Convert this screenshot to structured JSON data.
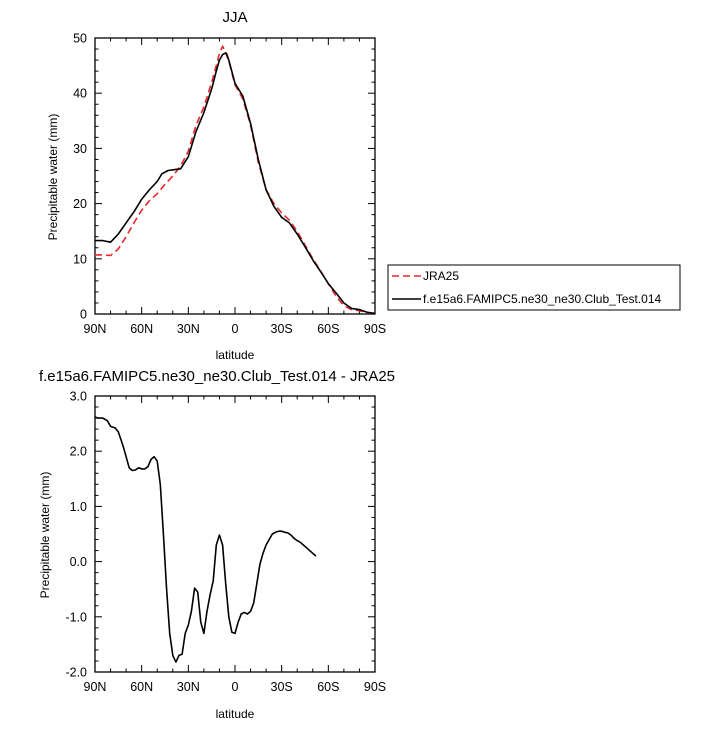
{
  "chart_data": [
    {
      "type": "line",
      "title": "JJA",
      "xlabel": "latitude",
      "ylabel": "Precipitable water (mm)",
      "xlim": [
        90,
        -90
      ],
      "ylim": [
        0,
        50
      ],
      "xticks": [
        90,
        60,
        30,
        0,
        -30,
        -60,
        -90
      ],
      "xtick_labels": [
        "90N",
        "60N",
        "30N",
        "0",
        "30S",
        "60S",
        "90S"
      ],
      "yticks": [
        0,
        10,
        20,
        30,
        40,
        50
      ],
      "ytick_labels": [
        "0",
        "10",
        "20",
        "30",
        "40",
        "50"
      ],
      "grid": false,
      "legend_position": "right",
      "series": [
        {
          "name": "JRA25",
          "color": "#e8262b",
          "dash": "dashed",
          "points": [
            [
              90,
              10.7
            ],
            [
              85,
              10.7
            ],
            [
              80,
              10.6
            ],
            [
              75,
              11.8
            ],
            [
              70,
              14
            ],
            [
              65,
              16.5
            ],
            [
              60,
              18.8
            ],
            [
              55,
              20.5
            ],
            [
              50,
              21.8
            ],
            [
              45,
              23.5
            ],
            [
              40,
              25
            ],
            [
              35,
              26.8
            ],
            [
              30,
              29.5
            ],
            [
              25,
              34.2
            ],
            [
              20,
              37.5
            ],
            [
              15,
              42
            ],
            [
              12,
              45
            ],
            [
              10,
              47.2
            ],
            [
              8,
              48.5
            ],
            [
              5,
              47
            ],
            [
              0,
              41.5
            ],
            [
              -5,
              39
            ],
            [
              -10,
              34.2
            ],
            [
              -15,
              27.5
            ],
            [
              -20,
              22.5
            ],
            [
              -25,
              20
            ],
            [
              -30,
              18.3
            ],
            [
              -35,
              17
            ],
            [
              -40,
              15
            ],
            [
              -45,
              12.5
            ],
            [
              -50,
              10
            ],
            [
              -55,
              7.8
            ],
            [
              -60,
              5.5
            ],
            [
              -65,
              3.2
            ],
            [
              -70,
              1.5
            ],
            [
              -75,
              0.8
            ],
            [
              -80,
              0.6
            ],
            [
              -85,
              0.2
            ],
            [
              -90,
              0.1
            ]
          ]
        },
        {
          "name": "f.e15a6.FAMIPC5.ne30_ne30.Club_Test.014",
          "color": "#000000",
          "dash": "solid",
          "points": [
            [
              90,
              13.3
            ],
            [
              85,
              13.3
            ],
            [
              80,
              13
            ],
            [
              75,
              14.5
            ],
            [
              70,
              16.5
            ],
            [
              65,
              18.5
            ],
            [
              60,
              20.8
            ],
            [
              55,
              22.5
            ],
            [
              50,
              24
            ],
            [
              47,
              25.4
            ],
            [
              43,
              26
            ],
            [
              38,
              26.2
            ],
            [
              35,
              26.3
            ],
            [
              30,
              28.5
            ],
            [
              25,
              33.1
            ],
            [
              20,
              36.5
            ],
            [
              15,
              40.8
            ],
            [
              12,
              44
            ],
            [
              10,
              46
            ],
            [
              8,
              47
            ],
            [
              6,
              47.3
            ],
            [
              4,
              46
            ],
            [
              0,
              41.8
            ],
            [
              -5,
              39.5
            ],
            [
              -10,
              34.5
            ],
            [
              -15,
              28
            ],
            [
              -20,
              22.5
            ],
            [
              -25,
              19.5
            ],
            [
              -30,
              17.5
            ],
            [
              -35,
              16.5
            ],
            [
              -40,
              14.5
            ],
            [
              -45,
              12.2
            ],
            [
              -50,
              9.8
            ],
            [
              -55,
              7.7
            ],
            [
              -60,
              5.5
            ],
            [
              -65,
              3.8
            ],
            [
              -70,
              2
            ],
            [
              -75,
              1
            ],
            [
              -80,
              0.8
            ],
            [
              -85,
              0.3
            ],
            [
              -90,
              0.1
            ]
          ]
        }
      ]
    },
    {
      "type": "line",
      "title": "f.e15a6.FAMIPC5.ne30_ne30.Club_Test.014 - JRA25",
      "xlabel": "latitude",
      "ylabel": "Precipitable water (mm)",
      "xlim": [
        90,
        -90
      ],
      "ylim": [
        -2.0,
        3.0
      ],
      "xticks": [
        90,
        60,
        30,
        0,
        -30,
        -60,
        -90
      ],
      "xtick_labels": [
        "90N",
        "60N",
        "30N",
        "0",
        "30S",
        "60S",
        "90S"
      ],
      "yticks": [
        -2.0,
        -1.0,
        0.0,
        1.0,
        2.0,
        3.0
      ],
      "ytick_labels": [
        "-2.0",
        "-1.0",
        "0.0",
        "1.0",
        "2.0",
        "3.0"
      ],
      "grid": false,
      "series": [
        {
          "color": "#000000",
          "dash": "solid",
          "points": [
            [
              90,
              2.62
            ],
            [
              88,
              2.6
            ],
            [
              85,
              2.6
            ],
            [
              82,
              2.55
            ],
            [
              80,
              2.45
            ],
            [
              77,
              2.42
            ],
            [
              75,
              2.35
            ],
            [
              72,
              2.1
            ],
            [
              70,
              1.9
            ],
            [
              68,
              1.7
            ],
            [
              66,
              1.65
            ],
            [
              64,
              1.66
            ],
            [
              62,
              1.7
            ],
            [
              60,
              1.68
            ],
            [
              58,
              1.68
            ],
            [
              56,
              1.72
            ],
            [
              54,
              1.85
            ],
            [
              52,
              1.9
            ],
            [
              50,
              1.82
            ],
            [
              48,
              1.4
            ],
            [
              46,
              0.5
            ],
            [
              44,
              -0.5
            ],
            [
              42,
              -1.3
            ],
            [
              40,
              -1.7
            ],
            [
              38,
              -1.82
            ],
            [
              36,
              -1.7
            ],
            [
              34,
              -1.68
            ],
            [
              32,
              -1.3
            ],
            [
              30,
              -1.15
            ],
            [
              28,
              -0.9
            ],
            [
              26,
              -0.48
            ],
            [
              24,
              -0.55
            ],
            [
              22,
              -1.1
            ],
            [
              20,
              -1.3
            ],
            [
              18,
              -0.9
            ],
            [
              16,
              -0.6
            ],
            [
              14,
              -0.35
            ],
            [
              12,
              0.3
            ],
            [
              10,
              0.48
            ],
            [
              8,
              0.3
            ],
            [
              6,
              -0.4
            ],
            [
              4,
              -1.0
            ],
            [
              2,
              -1.28
            ],
            [
              0,
              -1.3
            ],
            [
              -2,
              -1.1
            ],
            [
              -4,
              -0.95
            ],
            [
              -6,
              -0.92
            ],
            [
              -8,
              -0.95
            ],
            [
              -10,
              -0.9
            ],
            [
              -12,
              -0.75
            ],
            [
              -14,
              -0.4
            ],
            [
              -16,
              -0.05
            ],
            [
              -18,
              0.15
            ],
            [
              -20,
              0.3
            ],
            [
              -22,
              0.4
            ],
            [
              -24,
              0.5
            ],
            [
              -26,
              0.53
            ],
            [
              -28,
              0.55
            ],
            [
              -30,
              0.55
            ],
            [
              -32,
              0.53
            ],
            [
              -34,
              0.52
            ],
            [
              -36,
              0.48
            ],
            [
              -38,
              0.42
            ],
            [
              -40,
              0.38
            ],
            [
              -42,
              0.35
            ],
            [
              -44,
              0.3
            ],
            [
              -46,
              0.25
            ],
            [
              -48,
              0.2
            ],
            [
              -50,
              0.15
            ],
            [
              -52,
              0.1
            ]
          ]
        }
      ]
    }
  ]
}
